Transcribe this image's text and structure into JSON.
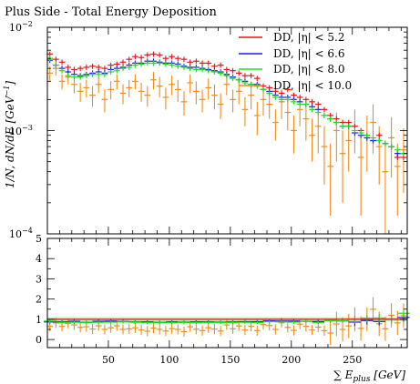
{
  "chart_data": [
    {
      "type": "scatter",
      "title": "Plus Side - Total Energy Deposition",
      "ylabel": "1/N, dN/dE [GeV^-1]",
      "xlim": [
        0,
        295
      ],
      "ylim": [
        0.0001,
        0.01
      ],
      "yscale": "log",
      "ytick_labels": [
        "10^-4",
        "10^-3",
        "10^-2"
      ],
      "legend_position": "top-right",
      "series": [
        {
          "name": "DD, |η| < 5.2",
          "color": "#e8141a",
          "x": [
            2,
            7,
            12,
            17,
            22,
            27,
            32,
            37,
            42,
            47,
            52,
            57,
            62,
            67,
            72,
            77,
            82,
            87,
            92,
            97,
            102,
            107,
            112,
            117,
            122,
            127,
            132,
            137,
            142,
            147,
            152,
            157,
            162,
            167,
            172,
            177,
            182,
            187,
            192,
            197,
            202,
            207,
            212,
            217,
            222,
            227,
            232,
            237,
            242,
            247,
            252,
            257,
            262,
            267,
            272,
            277,
            282,
            287,
            292
          ],
          "y": [
            0.0055,
            0.0049,
            0.0046,
            0.0041,
            0.0039,
            0.004,
            0.0041,
            0.0042,
            0.0041,
            0.004,
            0.0043,
            0.0044,
            0.0046,
            0.0049,
            0.0052,
            0.0051,
            0.0054,
            0.0055,
            0.0054,
            0.005,
            0.0052,
            0.005,
            0.0049,
            0.0046,
            0.0047,
            0.0045,
            0.0045,
            0.0042,
            0.0043,
            0.0039,
            0.0038,
            0.0036,
            0.0034,
            0.0034,
            0.0032,
            0.0027,
            0.0026,
            0.0024,
            0.0023,
            0.0025,
            0.0022,
            0.0021,
            0.002,
            0.0019,
            0.0018,
            0.0016,
            0.0014,
            0.0013,
            0.0012,
            0.0012,
            0.0011,
            0.001,
            0.0009,
            0.0008,
            0.0009,
            0.00075,
            0.0007,
            0.00055,
            0.00055
          ]
        },
        {
          "name": "DD, |η| < 6.6",
          "color": "#1a1ae6",
          "x": [
            2,
            7,
            12,
            17,
            22,
            27,
            32,
            37,
            42,
            47,
            52,
            57,
            62,
            67,
            72,
            77,
            82,
            87,
            92,
            97,
            102,
            107,
            112,
            117,
            122,
            127,
            132,
            137,
            142,
            147,
            152,
            157,
            162,
            167,
            172,
            177,
            182,
            187,
            192,
            197,
            202,
            207,
            212,
            217,
            222,
            227,
            232,
            237,
            242,
            247,
            252,
            257,
            262,
            267,
            272,
            277,
            282,
            287,
            292
          ],
          "y": [
            0.0048,
            0.0043,
            0.004,
            0.0037,
            0.0035,
            0.0034,
            0.0035,
            0.0036,
            0.0037,
            0.0036,
            0.0039,
            0.004,
            0.0041,
            0.0043,
            0.0045,
            0.0045,
            0.0047,
            0.0047,
            0.0046,
            0.0045,
            0.0045,
            0.0044,
            0.0042,
            0.0041,
            0.0041,
            0.004,
            0.0039,
            0.0038,
            0.0037,
            0.0035,
            0.0033,
            0.0031,
            0.003,
            0.0028,
            0.0028,
            0.0025,
            0.0024,
            0.0022,
            0.0021,
            0.0021,
            0.002,
            0.0019,
            0.0018,
            0.0017,
            0.0016,
            0.0014,
            0.0013,
            0.0012,
            0.0011,
            0.0011,
            0.00095,
            0.0009,
            0.00085,
            0.0008,
            0.0008,
            0.00075,
            0.0007,
            0.0006,
            0.0006
          ]
        },
        {
          "name": "DD, |η| < 8.0",
          "color": "#22dd22",
          "x": [
            2,
            7,
            12,
            17,
            22,
            27,
            32,
            37,
            42,
            47,
            52,
            57,
            62,
            67,
            72,
            77,
            82,
            87,
            92,
            97,
            102,
            107,
            112,
            117,
            122,
            127,
            132,
            137,
            142,
            147,
            152,
            157,
            162,
            167,
            172,
            177,
            182,
            187,
            192,
            197,
            202,
            207,
            212,
            217,
            222,
            227,
            232,
            237,
            242,
            247,
            252,
            257,
            262,
            267,
            272,
            277,
            282,
            287,
            292
          ],
          "y": [
            0.005,
            0.0043,
            0.0038,
            0.0034,
            0.0033,
            0.0033,
            0.0034,
            0.0035,
            0.0035,
            0.0035,
            0.0037,
            0.0038,
            0.004,
            0.0041,
            0.0043,
            0.0044,
            0.0045,
            0.0045,
            0.0045,
            0.0044,
            0.0043,
            0.0042,
            0.0041,
            0.004,
            0.0039,
            0.0039,
            0.0038,
            0.0037,
            0.0036,
            0.0034,
            0.0032,
            0.0031,
            0.0029,
            0.0028,
            0.0027,
            0.0025,
            0.0023,
            0.0021,
            0.002,
            0.002,
            0.0019,
            0.0018,
            0.0018,
            0.0016,
            0.0015,
            0.0014,
            0.0013,
            0.0012,
            0.0011,
            0.0011,
            0.001,
            0.00095,
            0.0009,
            0.00085,
            0.0008,
            0.00075,
            0.0007,
            0.00065,
            0.0006
          ]
        },
        {
          "name": "DD, |η| < 10.0",
          "color": "#f08c1e",
          "x": [
            2,
            7,
            12,
            17,
            22,
            27,
            32,
            37,
            42,
            47,
            52,
            57,
            62,
            67,
            72,
            77,
            82,
            87,
            92,
            97,
            102,
            107,
            112,
            117,
            122,
            127,
            132,
            137,
            142,
            147,
            152,
            157,
            162,
            167,
            172,
            177,
            182,
            187,
            192,
            197,
            202,
            207,
            212,
            217,
            222,
            227,
            232,
            237,
            242,
            247,
            252,
            257,
            262,
            267,
            272,
            277,
            282,
            287,
            292
          ],
          "y": [
            0.0036,
            0.004,
            0.003,
            0.0033,
            0.0028,
            0.0024,
            0.0026,
            0.0022,
            0.0028,
            0.002,
            0.0025,
            0.003,
            0.0023,
            0.0026,
            0.003,
            0.0024,
            0.0022,
            0.0031,
            0.0027,
            0.0021,
            0.0028,
            0.0025,
            0.0019,
            0.0029,
            0.0024,
            0.002,
            0.0026,
            0.0022,
            0.0018,
            0.0028,
            0.002,
            0.0024,
            0.0016,
            0.0022,
            0.0014,
            0.002,
            0.0018,
            0.0012,
            0.0019,
            0.0015,
            0.001,
            0.0016,
            0.0013,
            0.0009,
            0.0011,
            0.0007,
            0.00045,
            0.001,
            0.0006,
            0.0008,
            0.0011,
            0.00055,
            0.0009,
            0.0012,
            0.0007,
            0.0004,
            0.00085,
            0.00045,
            0.00065
          ],
          "err": [
            0.0006,
            0.0006,
            0.0005,
            0.0005,
            0.0005,
            0.0005,
            0.0005,
            0.0005,
            0.0005,
            0.0005,
            0.0005,
            0.0005,
            0.0005,
            0.0005,
            0.0005,
            0.0005,
            0.0005,
            0.0006,
            0.0006,
            0.0005,
            0.0006,
            0.0006,
            0.0005,
            0.0006,
            0.0006,
            0.0005,
            0.0006,
            0.0006,
            0.0005,
            0.0006,
            0.0005,
            0.0006,
            0.0005,
            0.0006,
            0.0005,
            0.0006,
            0.0005,
            0.0004,
            0.0006,
            0.0005,
            0.0004,
            0.0005,
            0.0005,
            0.0004,
            0.0005,
            0.0004,
            0.0003,
            0.0005,
            0.0004,
            0.0004,
            0.0005,
            0.0004,
            0.0005,
            0.0006,
            0.0004,
            0.0003,
            0.0005,
            0.0003,
            0.0004
          ]
        }
      ]
    },
    {
      "type": "scatter",
      "xlabel": "∑ E_plus [GeV]",
      "ylabel": "",
      "xlim": [
        0,
        295
      ],
      "ylim": [
        -0.4,
        5
      ],
      "xticks": [
        50,
        100,
        150,
        200,
        250
      ],
      "yticks": [
        0,
        1,
        2,
        3,
        4,
        5
      ],
      "reference_line": 1,
      "series": [
        {
          "name": "DD, |η| < 5.2",
          "color": "#e8141a",
          "constant": 1.0
        },
        {
          "name": "DD, |η| < 6.6",
          "color": "#1a1ae6",
          "x": [
            2,
            12,
            22,
            32,
            42,
            52,
            62,
            72,
            82,
            92,
            102,
            112,
            122,
            132,
            142,
            152,
            162,
            172,
            182,
            192,
            202,
            212,
            222,
            232,
            242,
            252,
            262,
            272,
            282,
            292
          ],
          "y": [
            0.87,
            0.87,
            0.9,
            0.85,
            0.9,
            0.91,
            0.89,
            0.87,
            0.87,
            0.85,
            0.87,
            0.86,
            0.87,
            0.87,
            0.86,
            0.87,
            0.88,
            0.88,
            0.92,
            0.91,
            0.91,
            0.9,
            0.89,
            0.93,
            0.92,
            0.86,
            0.94,
            0.89,
            1.0,
            1.09
          ]
        },
        {
          "name": "DD, |η| < 8.0",
          "color": "#22dd22",
          "x": [
            2,
            12,
            22,
            32,
            42,
            52,
            62,
            72,
            82,
            92,
            102,
            112,
            122,
            132,
            142,
            152,
            162,
            172,
            182,
            192,
            202,
            212,
            222,
            232,
            242,
            252,
            262,
            272,
            282,
            292
          ],
          "y": [
            0.91,
            0.83,
            0.85,
            0.83,
            0.85,
            0.86,
            0.87,
            0.85,
            0.83,
            0.83,
            0.83,
            0.84,
            0.83,
            0.84,
            0.84,
            0.84,
            0.85,
            0.84,
            0.88,
            0.87,
            0.86,
            0.9,
            0.83,
            0.93,
            0.92,
            1.0,
            1.05,
            1.06,
            1.0,
            1.3
          ]
        },
        {
          "name": "DD, |η| < 10.0",
          "color": "#f08c1e",
          "x": [
            2,
            7,
            12,
            17,
            22,
            27,
            32,
            37,
            42,
            47,
            52,
            57,
            62,
            67,
            72,
            77,
            82,
            87,
            92,
            97,
            102,
            107,
            112,
            117,
            122,
            127,
            132,
            137,
            142,
            147,
            152,
            157,
            162,
            167,
            172,
            177,
            182,
            187,
            192,
            197,
            202,
            207,
            212,
            217,
            222,
            227,
            232,
            237,
            242,
            247,
            252,
            257,
            262,
            267,
            272,
            277,
            282,
            287,
            292
          ],
          "y": [
            0.65,
            0.82,
            0.65,
            0.8,
            0.72,
            0.6,
            0.63,
            0.52,
            0.68,
            0.5,
            0.58,
            0.68,
            0.5,
            0.53,
            0.58,
            0.47,
            0.41,
            0.56,
            0.5,
            0.42,
            0.54,
            0.5,
            0.39,
            0.63,
            0.51,
            0.44,
            0.58,
            0.52,
            0.42,
            0.72,
            0.53,
            0.67,
            0.47,
            0.65,
            0.44,
            0.74,
            0.69,
            0.5,
            0.83,
            0.6,
            0.45,
            0.76,
            0.65,
            0.47,
            0.61,
            0.44,
            0.32,
            0.77,
            0.5,
            0.67,
            1.0,
            0.55,
            1.0,
            1.5,
            0.78,
            0.53,
            1.2,
            0.82,
            1.18
          ]
        }
      ]
    }
  ]
}
